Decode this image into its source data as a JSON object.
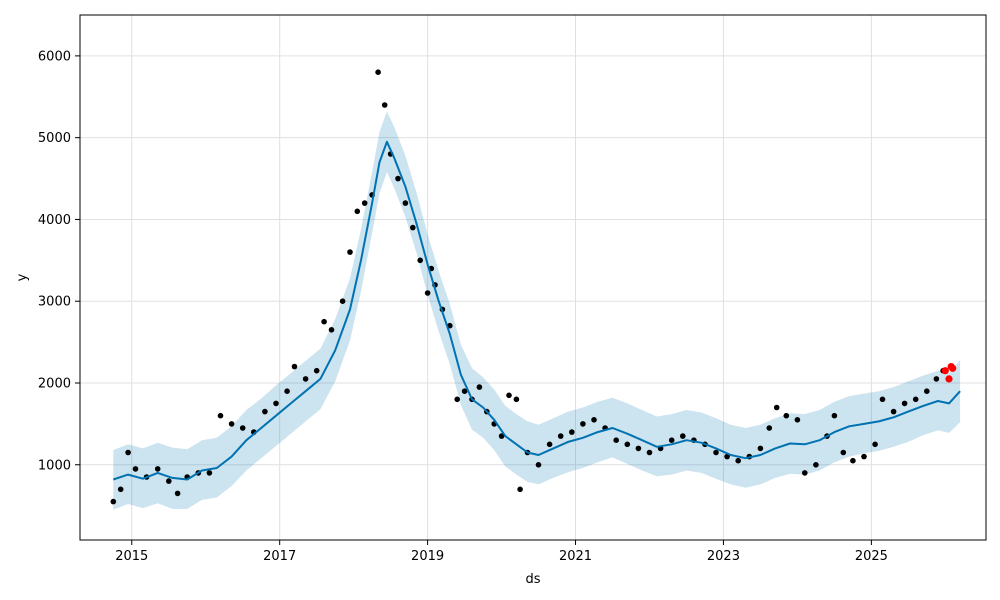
{
  "chart_data": {
    "type": "line",
    "title": "",
    "xlabel": "ds",
    "ylabel": "y",
    "xlim": [
      2014.3,
      2026.55
    ],
    "ylim": [
      80,
      6500
    ],
    "x_ticks": [
      2015,
      2017,
      2019,
      2021,
      2023,
      2025
    ],
    "y_ticks": [
      1000,
      2000,
      3000,
      4000,
      5000,
      6000
    ],
    "grid": true,
    "colors": {
      "observed": "#000000",
      "forecast_line": "#0072b2",
      "uncertainty_band": "#0072b2",
      "highlight_points": "#ff0000",
      "grid": "#e0e0e0"
    },
    "series": [
      {
        "role": "observed",
        "kind": "scatter",
        "x": [
          2014.75,
          2014.85,
          2014.95,
          2015.05,
          2015.2,
          2015.35,
          2015.5,
          2015.62,
          2015.75,
          2015.9,
          2016.05,
          2016.2,
          2016.35,
          2016.5,
          2016.65,
          2016.8,
          2016.95,
          2017.1,
          2017.2,
          2017.35,
          2017.5,
          2017.6,
          2017.7,
          2017.85,
          2017.95,
          2018.05,
          2018.15,
          2018.25,
          2018.33,
          2018.42,
          2018.5,
          2018.6,
          2018.7,
          2018.8,
          2018.9,
          2019.0,
          2019.05,
          2019.1,
          2019.2,
          2019.3,
          2019.4,
          2019.5,
          2019.6,
          2019.7,
          2019.8,
          2019.9,
          2020.0,
          2020.1,
          2020.2,
          2020.25,
          2020.35,
          2020.5,
          2020.65,
          2020.8,
          2020.95,
          2021.1,
          2021.25,
          2021.4,
          2021.55,
          2021.7,
          2021.85,
          2022.0,
          2022.15,
          2022.3,
          2022.45,
          2022.6,
          2022.75,
          2022.9,
          2023.05,
          2023.2,
          2023.35,
          2023.5,
          2023.62,
          2023.72,
          2023.85,
          2024.0,
          2024.1,
          2024.25,
          2024.4,
          2024.5,
          2024.62,
          2024.75,
          2024.9,
          2025.05,
          2025.15,
          2025.3,
          2025.45,
          2025.6,
          2025.75,
          2025.88,
          2025.97
        ],
        "y": [
          550,
          700,
          1150,
          950,
          850,
          950,
          800,
          650,
          850,
          900,
          900,
          1600,
          1500,
          1450,
          1400,
          1650,
          1750,
          1900,
          2200,
          2050,
          2150,
          2750,
          2650,
          3000,
          3600,
          4100,
          4200,
          4300,
          5800,
          5400,
          4800,
          4500,
          4200,
          3900,
          3500,
          3100,
          3400,
          3200,
          2900,
          2700,
          1800,
          1900,
          1800,
          1950,
          1650,
          1500,
          1350,
          1850,
          1800,
          700,
          1150,
          1000,
          1250,
          1350,
          1400,
          1500,
          1550,
          1450,
          1300,
          1250,
          1200,
          1150,
          1200,
          1300,
          1350,
          1300,
          1250,
          1150,
          1100,
          1050,
          1100,
          1200,
          1450,
          1700,
          1600,
          1550,
          900,
          1000,
          1350,
          1600,
          1150,
          1050,
          1100,
          1250,
          1800,
          1650,
          1750,
          1800,
          1900,
          2050,
          2150
        ]
      },
      {
        "role": "recent-observed",
        "kind": "scatter",
        "x": [
          2026.0,
          2026.05,
          2026.08,
          2026.1
        ],
        "y": [
          2150,
          2050,
          2200,
          2180
        ]
      },
      {
        "role": "forecast",
        "kind": "line",
        "x": [
          2014.75,
          2014.95,
          2015.15,
          2015.35,
          2015.55,
          2015.75,
          2015.95,
          2016.15,
          2016.35,
          2016.55,
          2016.75,
          2016.95,
          2017.15,
          2017.35,
          2017.55,
          2017.75,
          2017.95,
          2018.1,
          2018.25,
          2018.35,
          2018.45,
          2018.55,
          2018.7,
          2018.85,
          2019.0,
          2019.15,
          2019.3,
          2019.45,
          2019.6,
          2019.75,
          2019.9,
          2020.05,
          2020.2,
          2020.35,
          2020.5,
          2020.7,
          2020.9,
          2021.1,
          2021.3,
          2021.5,
          2021.7,
          2021.9,
          2022.1,
          2022.3,
          2022.5,
          2022.7,
          2022.9,
          2023.1,
          2023.3,
          2023.5,
          2023.7,
          2023.9,
          2024.1,
          2024.3,
          2024.5,
          2024.7,
          2024.9,
          2025.1,
          2025.3,
          2025.5,
          2025.7,
          2025.9,
          2026.05,
          2026.2
        ],
        "y": [
          820,
          880,
          830,
          900,
          840,
          820,
          930,
          960,
          1100,
          1300,
          1450,
          1600,
          1750,
          1900,
          2050,
          2400,
          2900,
          3500,
          4200,
          4700,
          4950,
          4750,
          4400,
          3950,
          3450,
          3000,
          2600,
          2100,
          1800,
          1700,
          1550,
          1350,
          1250,
          1150,
          1120,
          1200,
          1280,
          1330,
          1400,
          1450,
          1380,
          1300,
          1220,
          1250,
          1300,
          1270,
          1200,
          1120,
          1080,
          1120,
          1200,
          1260,
          1250,
          1300,
          1400,
          1470,
          1500,
          1530,
          1580,
          1650,
          1720,
          1780,
          1750,
          1900
        ]
      },
      {
        "role": "uncertainty-lower",
        "kind": "band",
        "y": [
          450,
          520,
          470,
          530,
          460,
          460,
          570,
          600,
          740,
          930,
          1080,
          1230,
          1380,
          1530,
          1680,
          2020,
          2520,
          3120,
          3830,
          4320,
          4580,
          4380,
          4030,
          3590,
          3080,
          2630,
          2230,
          1730,
          1430,
          1330,
          1180,
          980,
          880,
          790,
          760,
          840,
          910,
          960,
          1030,
          1090,
          1010,
          930,
          860,
          880,
          930,
          900,
          830,
          760,
          720,
          760,
          840,
          890,
          880,
          930,
          1030,
          1100,
          1140,
          1170,
          1220,
          1280,
          1360,
          1420,
          1390,
          1520
        ]
      },
      {
        "role": "uncertainty-upper",
        "kind": "band",
        "y": [
          1180,
          1250,
          1200,
          1270,
          1210,
          1190,
          1300,
          1330,
          1470,
          1670,
          1810,
          1970,
          2120,
          2270,
          2420,
          2780,
          3280,
          3880,
          4580,
          5070,
          5320,
          5130,
          4780,
          4330,
          3820,
          3370,
          2970,
          2470,
          2180,
          2070,
          1920,
          1720,
          1620,
          1530,
          1490,
          1570,
          1650,
          1700,
          1770,
          1820,
          1750,
          1670,
          1590,
          1620,
          1670,
          1640,
          1570,
          1490,
          1450,
          1490,
          1570,
          1630,
          1620,
          1670,
          1770,
          1840,
          1870,
          1900,
          1950,
          2020,
          2090,
          2150,
          2120,
          2280
        ]
      }
    ]
  }
}
